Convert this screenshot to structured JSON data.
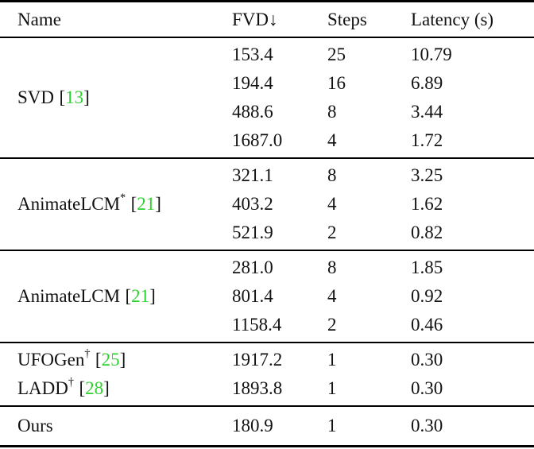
{
  "header": {
    "name": "Name",
    "fvd": "FVD↓",
    "steps": "Steps",
    "latency": "Latency (s)"
  },
  "colors": {
    "cite_green": "#2ed22e",
    "text": "#121212",
    "rule": "#000000",
    "background": "#ffffff"
  },
  "sections": [
    {
      "entries": [
        {
          "name_base": "SVD",
          "name_sup": "",
          "cite_open": "[",
          "cite_num": "13",
          "cite_close": "]",
          "rows": [
            {
              "fvd": "153.4",
              "steps": "25",
              "latency": "10.79"
            },
            {
              "fvd": "194.4",
              "steps": "16",
              "latency": "6.89"
            },
            {
              "fvd": "488.6",
              "steps": "8",
              "latency": "3.44"
            },
            {
              "fvd": "1687.0",
              "steps": "4",
              "latency": "1.72"
            }
          ]
        }
      ]
    },
    {
      "entries": [
        {
          "name_base": "AnimateLCM",
          "name_sup": "*",
          "cite_open": "[",
          "cite_num": "21",
          "cite_close": "]",
          "rows": [
            {
              "fvd": "321.1",
              "steps": "8",
              "latency": "3.25"
            },
            {
              "fvd": "403.2",
              "steps": "4",
              "latency": "1.62"
            },
            {
              "fvd": "521.9",
              "steps": "2",
              "latency": "0.82"
            }
          ]
        }
      ]
    },
    {
      "entries": [
        {
          "name_base": "AnimateLCM",
          "name_sup": "",
          "cite_open": "[",
          "cite_num": "21",
          "cite_close": "]",
          "rows": [
            {
              "fvd": "281.0",
              "steps": "8",
              "latency": "1.85"
            },
            {
              "fvd": "801.4",
              "steps": "4",
              "latency": "0.92"
            },
            {
              "fvd": "1158.4",
              "steps": "2",
              "latency": "0.46"
            }
          ]
        }
      ]
    },
    {
      "entries": [
        {
          "name_base": "UFOGen",
          "name_sup": "†",
          "cite_open": "[",
          "cite_num": "25",
          "cite_close": "]",
          "rows": [
            {
              "fvd": "1917.2",
              "steps": "1",
              "latency": "0.30"
            }
          ]
        },
        {
          "name_base": "LADD",
          "name_sup": "†",
          "cite_open": "[",
          "cite_num": "28",
          "cite_close": "]",
          "rows": [
            {
              "fvd": "1893.8",
              "steps": "1",
              "latency": "0.30"
            }
          ]
        }
      ]
    },
    {
      "entries": [
        {
          "name_base": "Ours",
          "name_sup": "",
          "cite_open": "",
          "cite_num": "",
          "cite_close": "",
          "rows": [
            {
              "fvd": "180.9",
              "steps": "1",
              "latency": "0.30"
            }
          ]
        }
      ]
    }
  ]
}
